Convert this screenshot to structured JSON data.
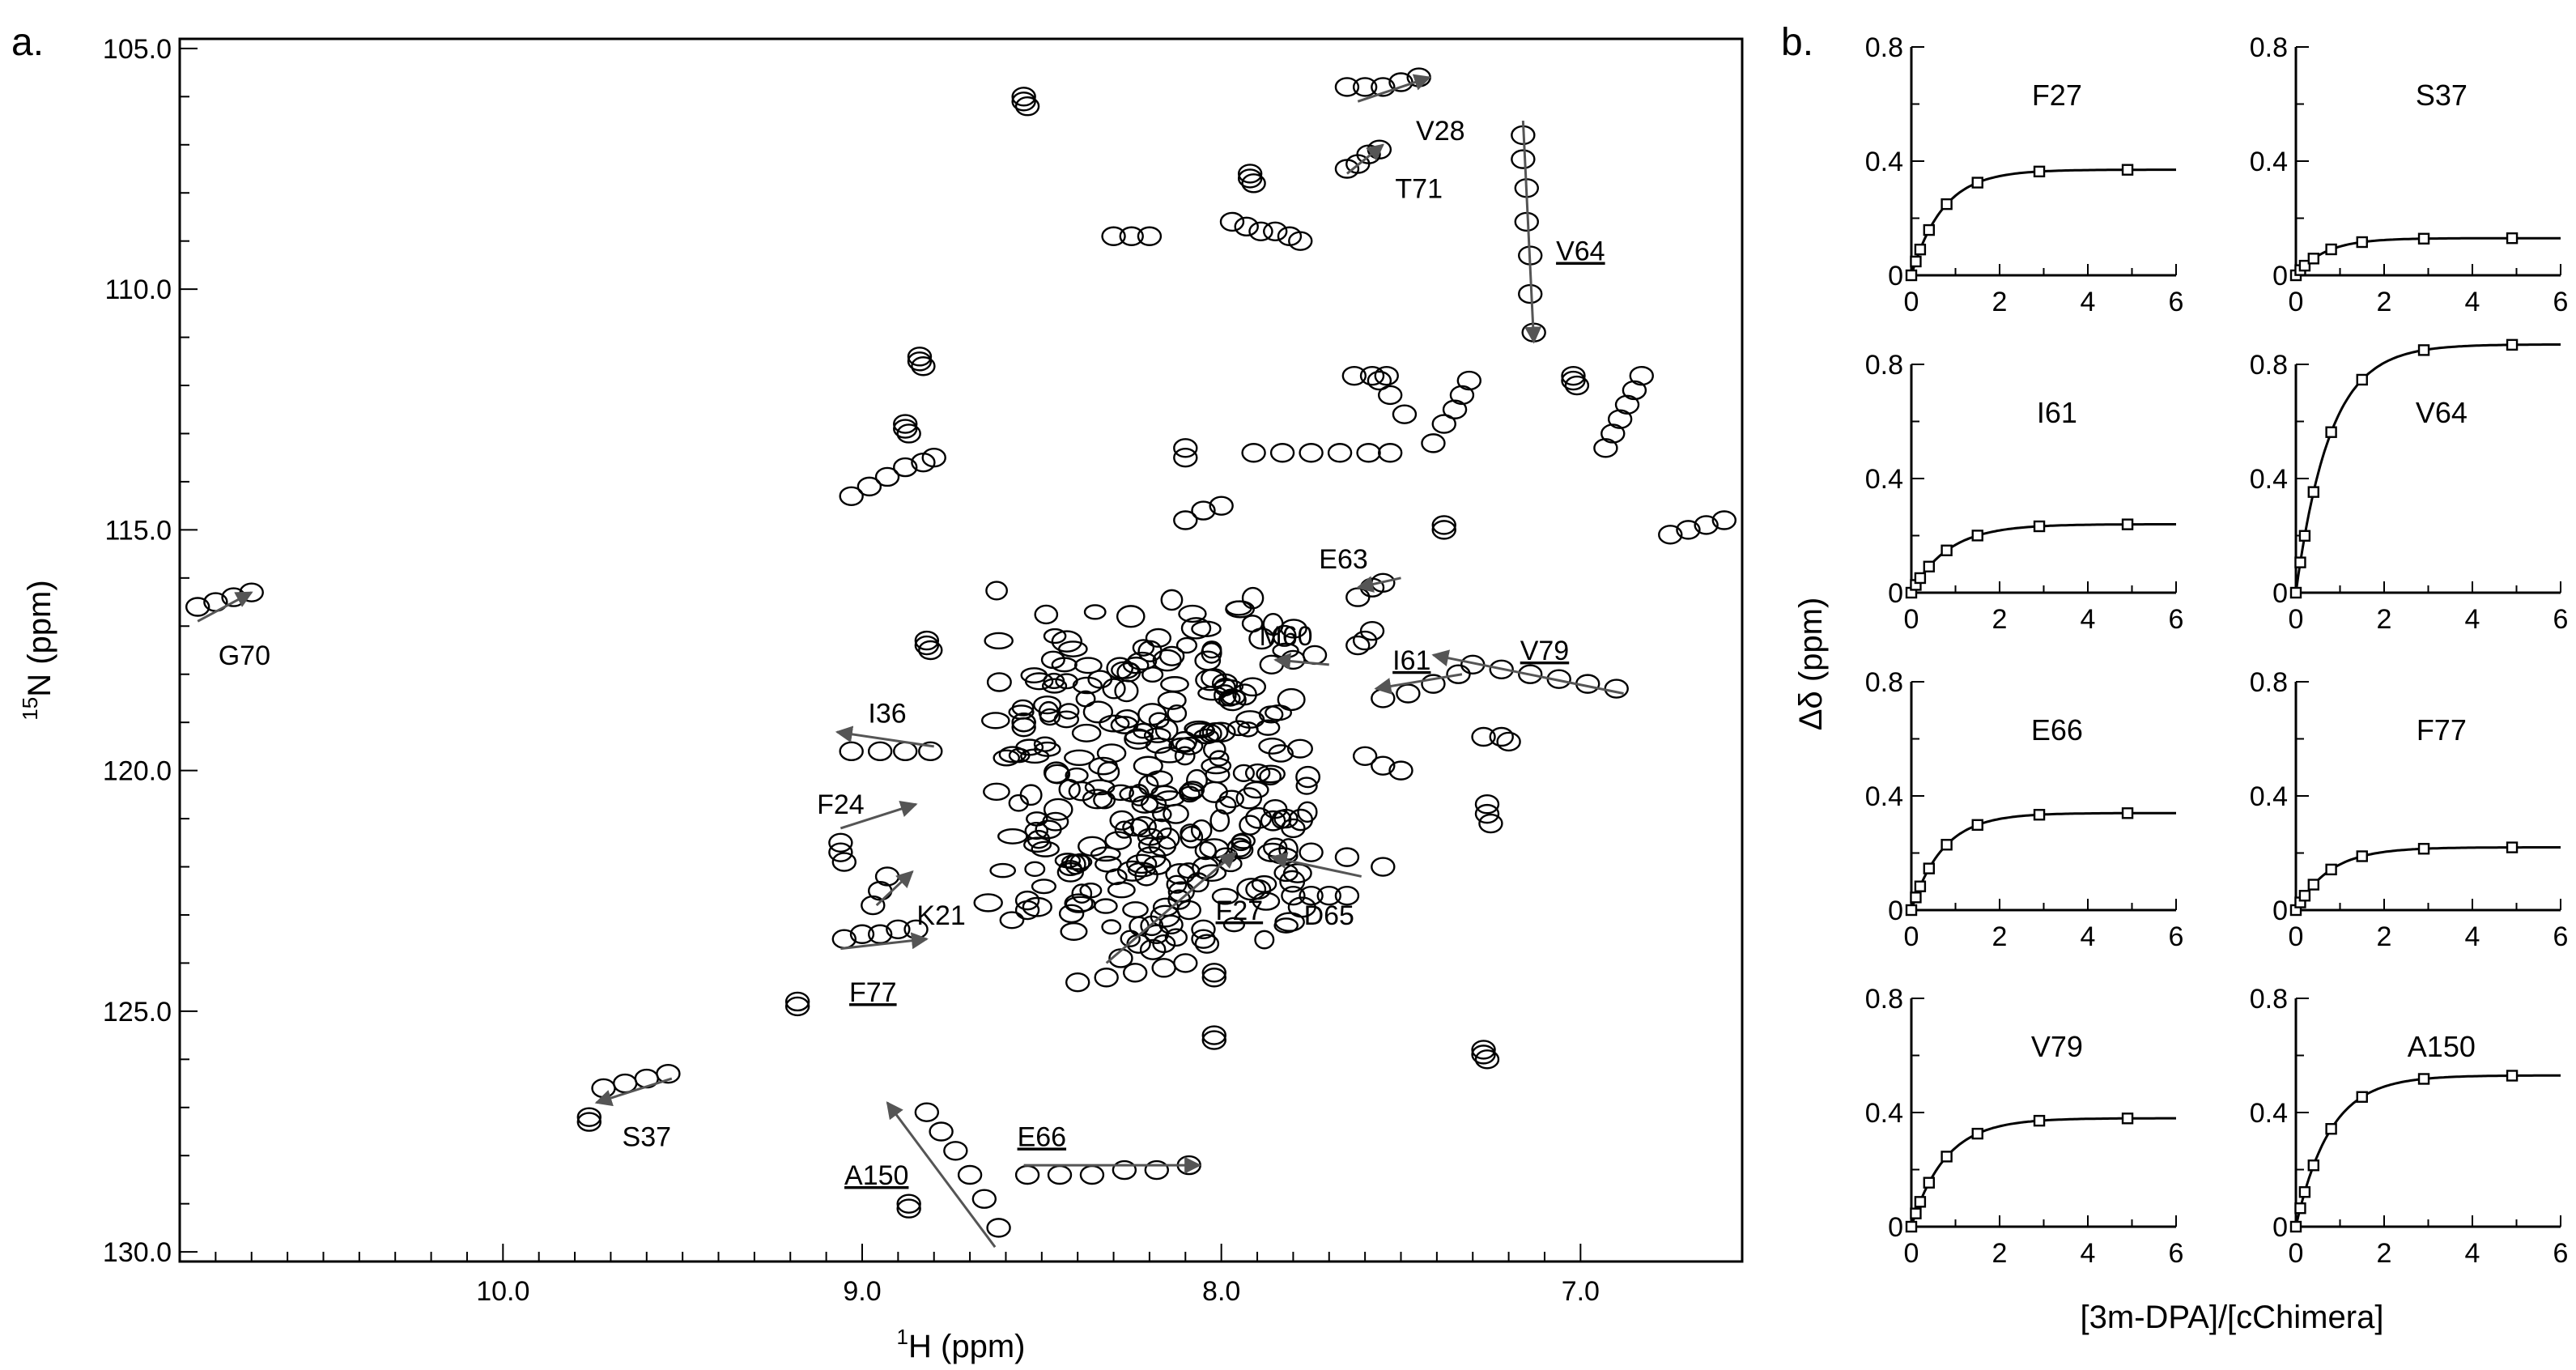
{
  "panel_labels": [
    "a.",
    "b."
  ],
  "colors": {
    "ink": "#000000",
    "arrow": "#555555",
    "background": "#ffffff"
  },
  "chart_data": [
    {
      "type": "scatter",
      "subtype": "2D NMR HSQC spectrum overlay",
      "xlabel": {
        "sup": "1",
        "text": "H (ppm)"
      },
      "ylabel": {
        "sup": "15",
        "text": "N (ppm)"
      },
      "xlim": [
        10.9,
        6.55
      ],
      "x_reversed": true,
      "ylim": [
        104.8,
        130.2
      ],
      "y_reversed": true,
      "xticks": [
        "10.0",
        "9.0",
        "8.0",
        "7.0"
      ],
      "yticks": [
        "105.0",
        "110.0",
        "115.0",
        "120.0",
        "125.0",
        "130.0"
      ],
      "labeled_peaks": [
        {
          "label": "V28",
          "underline": false,
          "from": [
            7.62,
            106.1
          ],
          "to": [
            7.42,
            105.6
          ],
          "tx": 7.39,
          "ty": 106.7
        },
        {
          "label": "T71",
          "underline": false,
          "from": [
            7.65,
            107.6
          ],
          "to": [
            7.55,
            107.0
          ],
          "tx": 7.45,
          "ty": 107.9
        },
        {
          "label": "V64",
          "underline": true,
          "from": [
            7.16,
            106.5
          ],
          "to": [
            7.13,
            111.1
          ],
          "tx": 7.0,
          "ty": 109.2
        },
        {
          "label": "G70",
          "underline": false,
          "from": [
            10.85,
            116.9
          ],
          "to": [
            10.7,
            116.3
          ],
          "tx": 10.72,
          "ty": 117.6
        },
        {
          "label": "E63",
          "underline": false,
          "from": [
            7.5,
            116.0
          ],
          "to": [
            7.62,
            116.2
          ],
          "tx": 7.66,
          "ty": 115.6
        },
        {
          "label": "M60",
          "underline": false,
          "from": [
            7.7,
            117.8
          ],
          "to": [
            7.85,
            117.7
          ],
          "tx": 7.82,
          "ty": 117.2
        },
        {
          "label": "I61",
          "underline": true,
          "from": [
            7.33,
            118.0
          ],
          "to": [
            7.57,
            118.3
          ],
          "tx": 7.47,
          "ty": 117.7
        },
        {
          "label": "V79",
          "underline": true,
          "from": [
            6.88,
            118.4
          ],
          "to": [
            7.41,
            117.6
          ],
          "tx": 7.1,
          "ty": 117.5
        },
        {
          "label": "I36",
          "underline": false,
          "from": [
            8.8,
            119.5
          ],
          "to": [
            9.07,
            119.2
          ],
          "tx": 8.93,
          "ty": 118.8
        },
        {
          "label": "F24",
          "underline": false,
          "from": [
            9.06,
            121.2
          ],
          "to": [
            8.85,
            120.7
          ],
          "tx": 9.06,
          "ty": 120.7
        },
        {
          "label": "K21",
          "underline": false,
          "from": [
            8.96,
            122.8
          ],
          "to": [
            8.86,
            122.1
          ],
          "tx": 8.78,
          "ty": 123.0
        },
        {
          "label": "F77",
          "underline": true,
          "from": [
            9.06,
            123.7
          ],
          "to": [
            8.82,
            123.5
          ],
          "tx": 8.97,
          "ty": 124.6
        },
        {
          "label": "F27",
          "underline": true,
          "from": [
            8.32,
            124.0
          ],
          "to": [
            7.96,
            121.7
          ],
          "tx": 7.95,
          "ty": 122.9
        },
        {
          "label": "D65",
          "underline": false,
          "from": [
            7.61,
            122.2
          ],
          "to": [
            7.86,
            121.8
          ],
          "tx": 7.7,
          "ty": 123.0
        },
        {
          "label": "S37",
          "underline": false,
          "from": [
            9.53,
            126.4
          ],
          "to": [
            9.74,
            126.9
          ],
          "tx": 9.6,
          "ty": 127.6
        },
        {
          "label": "A150",
          "underline": true,
          "from": [
            8.63,
            129.9
          ],
          "to": [
            8.93,
            126.9
          ],
          "tx": 8.96,
          "ty": 128.4
        },
        {
          "label": "E66",
          "underline": true,
          "from": [
            8.55,
            128.2
          ],
          "to": [
            8.06,
            128.2
          ],
          "tx": 8.5,
          "ty": 127.6
        }
      ],
      "peak_clusters": [
        {
          "x": [
            8.55,
            8.55,
            8.54
          ],
          "y": [
            106.0,
            106.1,
            106.2
          ]
        },
        {
          "x": [
            7.65,
            7.6,
            7.55,
            7.5,
            7.45
          ],
          "y": [
            105.8,
            105.8,
            105.8,
            105.7,
            105.6
          ]
        },
        {
          "x": [
            7.65,
            7.62,
            7.59,
            7.56
          ],
          "y": [
            107.5,
            107.4,
            107.2,
            107.1
          ]
        },
        {
          "x": [
            7.92,
            7.92,
            7.91
          ],
          "y": [
            107.6,
            107.7,
            107.8
          ]
        },
        {
          "x": [
            7.97,
            7.93,
            7.89,
            7.85,
            7.81,
            7.78
          ],
          "y": [
            108.6,
            108.7,
            108.8,
            108.8,
            108.9,
            109.0
          ]
        },
        {
          "x": [
            8.3,
            8.25,
            8.2
          ],
          "y": [
            108.9,
            108.9,
            108.9
          ]
        },
        {
          "x": [
            7.16,
            7.16,
            7.15,
            7.15,
            7.14,
            7.14,
            7.13
          ],
          "y": [
            106.8,
            107.3,
            107.9,
            108.6,
            109.3,
            110.1,
            110.9
          ]
        },
        {
          "x": [
            7.63,
            7.58,
            7.54
          ],
          "y": [
            111.8,
            111.8,
            111.8
          ]
        },
        {
          "x": [
            7.56,
            7.53,
            7.49
          ],
          "y": [
            111.9,
            112.2,
            112.6
          ]
        },
        {
          "x": [
            7.31,
            7.33,
            7.35,
            7.38,
            7.41
          ],
          "y": [
            111.9,
            112.2,
            112.5,
            112.8,
            113.2
          ]
        },
        {
          "x": [
            7.02,
            7.02,
            7.01
          ],
          "y": [
            111.8,
            111.9,
            112.0
          ]
        },
        {
          "x": [
            6.83,
            6.85,
            6.87,
            6.89,
            6.91,
            6.93
          ],
          "y": [
            111.8,
            112.1,
            112.4,
            112.7,
            113.0,
            113.3
          ]
        },
        {
          "x": [
            7.91,
            7.83,
            7.75,
            7.67,
            7.59,
            7.53
          ],
          "y": [
            113.4,
            113.4,
            113.4,
            113.4,
            113.4,
            113.4
          ]
        },
        {
          "x": [
            9.03,
            8.98,
            8.93,
            8.88,
            8.83,
            8.8
          ],
          "y": [
            114.3,
            114.1,
            113.9,
            113.7,
            113.6,
            113.5
          ]
        },
        {
          "x": [
            8.88,
            8.88,
            8.87
          ],
          "y": [
            112.8,
            112.9,
            113.0
          ]
        },
        {
          "x": [
            8.84,
            8.84,
            8.83
          ],
          "y": [
            111.4,
            111.5,
            111.6
          ]
        },
        {
          "x": [
            8.0,
            8.05,
            8.1
          ],
          "y": [
            114.5,
            114.6,
            114.8
          ]
        },
        {
          "x": [
            8.1,
            8.1
          ],
          "y": [
            113.3,
            113.5
          ]
        },
        {
          "x": [
            7.38,
            7.38
          ],
          "y": [
            114.9,
            115.0
          ]
        },
        {
          "x": [
            6.75,
            6.7,
            6.65,
            6.6
          ],
          "y": [
            115.1,
            115.0,
            114.9,
            114.8
          ]
        },
        {
          "x": [
            10.85,
            10.8,
            10.75,
            10.7
          ],
          "y": [
            116.6,
            116.5,
            116.4,
            116.3
          ]
        },
        {
          "x": [
            7.62,
            7.58,
            7.55
          ],
          "y": [
            116.4,
            116.2,
            116.1
          ]
        },
        {
          "x": [
            7.62,
            7.6,
            7.58
          ],
          "y": [
            117.4,
            117.3,
            117.1
          ]
        },
        {
          "x": [
            7.86,
            7.8,
            7.74
          ],
          "y": [
            117.8,
            117.7,
            117.6
          ]
        },
        {
          "x": [
            7.55,
            7.48,
            7.41,
            7.34
          ],
          "y": [
            118.5,
            118.4,
            118.2,
            118.0
          ]
        },
        {
          "x": [
            7.3,
            7.22,
            7.14,
            7.06,
            6.98,
            6.9
          ],
          "y": [
            117.8,
            117.9,
            118.0,
            118.1,
            118.2,
            118.3
          ]
        },
        {
          "x": [
            9.03,
            8.95,
            8.88,
            8.81
          ],
          "y": [
            119.6,
            119.6,
            119.6,
            119.6
          ]
        },
        {
          "x": [
            8.82,
            8.82,
            8.81
          ],
          "y": [
            117.3,
            117.4,
            117.5
          ]
        },
        {
          "x": [
            8.55,
            8.55,
            8.55
          ],
          "y": [
            119.0,
            119.0,
            119.1
          ]
        },
        {
          "x": [
            9.06,
            9.06,
            9.05
          ],
          "y": [
            121.5,
            121.7,
            121.9
          ]
        },
        {
          "x": [
            8.97,
            8.95,
            8.93
          ],
          "y": [
            122.8,
            122.5,
            122.2
          ]
        },
        {
          "x": [
            9.05,
            9.0,
            8.95,
            8.9,
            8.85
          ],
          "y": [
            123.5,
            123.4,
            123.4,
            123.3,
            123.3
          ]
        },
        {
          "x": [
            8.54,
            8.54
          ],
          "y": [
            122.7,
            122.9
          ]
        },
        {
          "x": [
            9.18,
            9.18
          ],
          "y": [
            124.8,
            124.9
          ]
        },
        {
          "x": [
            9.76,
            9.76
          ],
          "y": [
            127.2,
            127.3
          ]
        },
        {
          "x": [
            9.72,
            9.66,
            9.6,
            9.54
          ],
          "y": [
            126.6,
            126.5,
            126.4,
            126.3
          ]
        },
        {
          "x": [
            8.87,
            8.87
          ],
          "y": [
            129.0,
            129.1
          ]
        },
        {
          "x": [
            8.62,
            8.66,
            8.7,
            8.74,
            8.78,
            8.82
          ],
          "y": [
            129.5,
            128.9,
            128.4,
            127.9,
            127.5,
            127.1
          ]
        },
        {
          "x": [
            8.54,
            8.45,
            8.36,
            8.27,
            8.18,
            8.09
          ],
          "y": [
            128.4,
            128.4,
            128.4,
            128.3,
            128.3,
            128.2
          ]
        },
        {
          "x": [
            8.02,
            8.02
          ],
          "y": [
            125.5,
            125.6
          ]
        },
        {
          "x": [
            7.27,
            7.27,
            7.26
          ],
          "y": [
            125.8,
            125.9,
            126.0
          ]
        },
        {
          "x": [
            8.4,
            8.32,
            8.24,
            8.16,
            8.1
          ],
          "y": [
            124.4,
            124.3,
            124.2,
            124.1,
            124.0
          ]
        },
        {
          "x": [
            8.28,
            8.23,
            8.18,
            8.14,
            8.09
          ],
          "y": [
            123.9,
            123.6,
            123.4,
            123.2,
            122.9
          ]
        },
        {
          "x": [
            8.05,
            8.05,
            8.04
          ],
          "y": [
            123.3,
            123.5,
            123.6
          ]
        },
        {
          "x": [
            8.02,
            8.02
          ],
          "y": [
            124.2,
            124.3
          ]
        },
        {
          "x": [
            7.8,
            7.75,
            7.7,
            7.65
          ],
          "y": [
            122.6,
            122.6,
            122.6,
            122.6
          ]
        },
        {
          "x": [
            7.95,
            7.85,
            7.75,
            7.65,
            7.55
          ],
          "y": [
            121.6,
            121.6,
            121.7,
            121.8,
            122.0
          ]
        },
        {
          "x": [
            7.85,
            7.82,
            7.8
          ],
          "y": [
            120.8,
            121.0,
            121.2
          ]
        },
        {
          "x": [
            7.26,
            7.26,
            7.25
          ],
          "y": [
            120.7,
            120.9,
            121.1
          ]
        },
        {
          "x": [
            7.27,
            7.22,
            7.2
          ],
          "y": [
            119.3,
            119.3,
            119.4
          ]
        },
        {
          "x": [
            7.6,
            7.55,
            7.5
          ],
          "y": [
            119.7,
            119.9,
            120.0
          ]
        }
      ],
      "dense_region": {
        "x": [
          7.68,
          8.68
        ],
        "y": [
          116.0,
          124.0
        ]
      }
    },
    {
      "type": "line",
      "subtype": "binding titration small multiples",
      "ylabel": "Δδ (ppm)",
      "xlabel": "[3m-DPA]/[cChimera]",
      "xlim": [
        0,
        6
      ],
      "ylim": [
        0,
        0.8
      ],
      "xticks": [
        "0",
        "2",
        "4",
        "6"
      ],
      "yticks": [
        "0",
        "0.4",
        "0.8"
      ],
      "x": [
        0,
        0.1,
        0.2,
        0.4,
        0.8,
        1.5,
        2.9,
        4.9
      ],
      "series": [
        {
          "name": "F27",
          "plateau": 0.37,
          "k": 1.4
        },
        {
          "name": "S37",
          "plateau": 0.13,
          "k": 1.5
        },
        {
          "name": "I61",
          "plateau": 0.24,
          "k": 1.2
        },
        {
          "name": "V64",
          "plateau": 0.87,
          "k": 1.3
        },
        {
          "name": "E66",
          "plateau": 0.34,
          "k": 1.4
        },
        {
          "name": "F77",
          "plateau": 0.22,
          "k": 1.3
        },
        {
          "name": "V79",
          "plateau": 0.38,
          "k": 1.3
        },
        {
          "name": "A150",
          "plateau": 0.53,
          "k": 1.3
        }
      ]
    }
  ]
}
